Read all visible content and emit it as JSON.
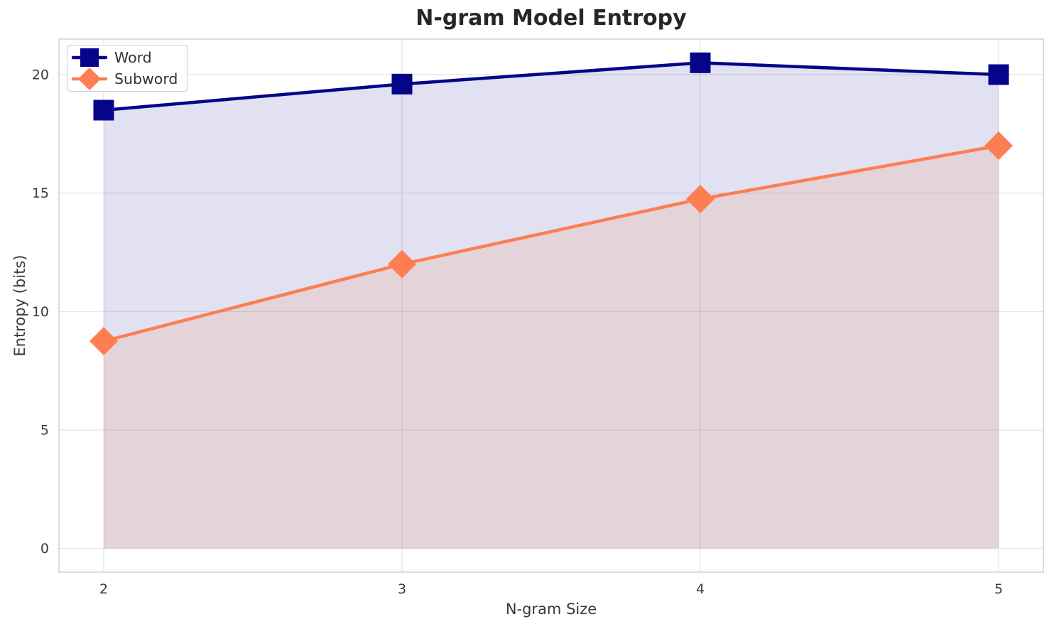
{
  "chart_data": {
    "type": "line",
    "title": "N-gram Model Entropy",
    "xlabel": "N-gram Size",
    "ylabel": "Entropy (bits)",
    "x": [
      2,
      3,
      4,
      5
    ],
    "series": [
      {
        "name": "Word",
        "values": [
          18.5,
          19.6,
          20.5,
          20.0
        ],
        "color": "#05058a",
        "marker": "square",
        "fill": "rgba(8, 8, 140, 0.12)"
      },
      {
        "name": "Subword",
        "values": [
          8.75,
          12.0,
          14.75,
          17.0
        ],
        "color": "#fc7e52",
        "marker": "diamond",
        "fill": "rgba(255, 127, 80, 0.14)"
      }
    ],
    "xticks": [
      "2",
      "3",
      "4",
      "5"
    ],
    "yticks": [
      "0",
      "5",
      "10",
      "15",
      "20"
    ],
    "xtick_values": [
      2,
      3,
      4,
      5
    ],
    "ytick_values": [
      0,
      5,
      10,
      15,
      20
    ],
    "xlim": [
      1.85,
      5.15
    ],
    "ylim": [
      -1.0,
      21.5
    ],
    "grid": true,
    "fill_to_zero": true,
    "legend_position": "upper left"
  },
  "style": {
    "grid_color": "#e7e7e7",
    "spine_color": "#d4d4d4",
    "tick_text_color": "#3a3a3a",
    "title_color": "#262626",
    "background": "#ffffff",
    "legend_border": "#cccccc"
  }
}
